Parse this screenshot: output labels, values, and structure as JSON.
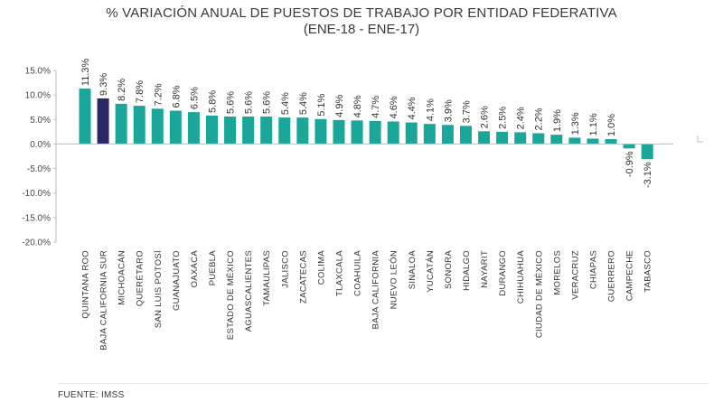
{
  "header": {
    "title": "% VARIACIÓN ANUAL DE PUESTOS DE TRABAJO POR ENTIDAD FEDERATIVA",
    "subtitle": "(ENE-18 - ENE-17)"
  },
  "footer": {
    "source": "FUENTE: IMSS"
  },
  "colors": {
    "bar": "#1aa699",
    "highlight": "#2a2862",
    "axis": "#bdbdbd"
  },
  "chart_data": {
    "type": "bar",
    "title": "% VARIACIÓN ANUAL DE PUESTOS DE TRABAJO POR ENTIDAD FEDERATIVA",
    "subtitle": "(ENE-18 - ENE-17)",
    "xlabel": "",
    "ylabel": "",
    "ylim": [
      -20,
      15
    ],
    "yticks": [
      15,
      10,
      5,
      0,
      -5,
      -10,
      -15,
      -20
    ],
    "ytick_labels": [
      "15.0%",
      "10.0%",
      "5.0%",
      "0.0%",
      "-5.0%",
      "-10.0%",
      "-15.0%",
      "-20.0%"
    ],
    "highlight_category": "BAJA CALIFORNIA SUR",
    "categories": [
      "QUINTANA ROO",
      "BAJA CALIFORNIA SUR",
      "MICHOACÁN",
      "QUERÉTARO",
      "SAN LUIS POTOSÍ",
      "GUANAJUATO",
      "OAXACA",
      "PUEBLA",
      "ESTADO DE MÉXICO",
      "AGUASCALIENTES",
      "TAMAULIPAS",
      "JALISCO",
      "ZACATECAS",
      "COLIMA",
      "TLAXCALA",
      "COAHUILA",
      "BAJA CALIFORNIA",
      "NUEVO LEÓN",
      "SINALOA",
      "YUCATÁN",
      "SONORA",
      "HIDALGO",
      "NAYARIT",
      "DURANGO",
      "CHIHUAHUA",
      "CIUDAD DE MÉXICO",
      "MORELOS",
      "VERACRUZ",
      "CHIAPAS",
      "GUERRERO",
      "CAMPECHE",
      "TABASCO"
    ],
    "values": [
      11.3,
      9.3,
      8.2,
      7.8,
      7.2,
      6.8,
      6.5,
      5.8,
      5.6,
      5.6,
      5.6,
      5.4,
      5.4,
      5.1,
      4.9,
      4.8,
      4.7,
      4.6,
      4.4,
      4.1,
      3.9,
      3.7,
      2.6,
      2.5,
      2.4,
      2.2,
      1.9,
      1.3,
      1.1,
      1.0,
      -0.9,
      -3.1
    ],
    "value_labels": [
      "11.3%",
      "9.3%",
      "8.2%",
      "7.8%",
      "7.2%",
      "6.8%",
      "6.5%",
      "5.8%",
      "5.6%",
      "5.6%",
      "5.6%",
      "5.4%",
      "5.4%",
      "5.1%",
      "4.9%",
      "4.8%",
      "4.7%",
      "4.6%",
      "4.4%",
      "4.1%",
      "3.9%",
      "3.7%",
      "2.6%",
      "2.5%",
      "2.4%",
      "2.2%",
      "1.9%",
      "1.3%",
      "1.1%",
      "1.0%",
      "-0.9%",
      "-3.1%"
    ]
  }
}
